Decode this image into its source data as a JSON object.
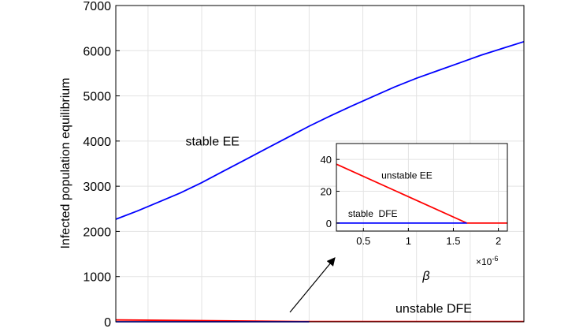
{
  "chart_data": [
    {
      "type": "line",
      "ylabel": "Infected population equilibrium",
      "xlim": [
        0.2,
        2.1
      ],
      "ylim": [
        0,
        7000
      ],
      "y_ticks": [
        0,
        1000,
        2000,
        3000,
        4000,
        5000,
        6000,
        7000
      ],
      "x_grid": [
        0.35,
        0.6,
        0.85,
        1.1,
        1.35,
        1.6,
        1.85
      ],
      "grid": true,
      "series": [
        {
          "name": "stable EE",
          "color": "#0000ff",
          "x": [
            0.2,
            0.3,
            0.4,
            0.5,
            0.6,
            0.7,
            0.8,
            0.9,
            1.0,
            1.1,
            1.2,
            1.3,
            1.4,
            1.5,
            1.6,
            1.7,
            1.8,
            1.9,
            2.0,
            2.1
          ],
          "y": [
            2270,
            2450,
            2650,
            2850,
            3080,
            3330,
            3580,
            3830,
            4080,
            4330,
            4560,
            4780,
            4990,
            5200,
            5390,
            5560,
            5730,
            5900,
            6050,
            6200
          ]
        },
        {
          "name": "unstable DFE",
          "color": "#ff0000",
          "x": [
            0.2,
            1.1,
            1.1,
            2.1
          ],
          "y": [
            40,
            5,
            5,
            5
          ]
        },
        {
          "name": "stable DFE",
          "color": "#0000ff",
          "x": [
            0.2,
            1.1
          ],
          "y": [
            0,
            0
          ]
        }
      ],
      "annotations": [
        {
          "text": "stable EE",
          "x": 0.65,
          "y": 3900
        },
        {
          "text": "unstable DFE",
          "x": 1.68,
          "y": 200
        }
      ]
    },
    {
      "type": "line",
      "xlabel": "β",
      "x_exponent_label": "×10",
      "x_exponent_power": "-6",
      "xlim": [
        0.2,
        2.1
      ],
      "ylim": [
        -5,
        50
      ],
      "x_ticks": [
        0.5,
        1,
        1.5,
        2
      ],
      "y_ticks": [
        0,
        20,
        40
      ],
      "grid": true,
      "series": [
        {
          "name": "unstable EE",
          "color": "#ff0000",
          "x": [
            0.2,
            1.65,
            2.1
          ],
          "y": [
            37,
            0,
            0
          ]
        },
        {
          "name": "stable DFE",
          "color": "#0000ff",
          "x": [
            0.2,
            1.65
          ],
          "y": [
            0,
            0
          ]
        }
      ],
      "annotations": [
        {
          "text": "unstable EE",
          "x": 0.7,
          "y": 28
        },
        {
          "text": "stable  DFE",
          "x": 0.33,
          "y": 4
        }
      ]
    }
  ]
}
